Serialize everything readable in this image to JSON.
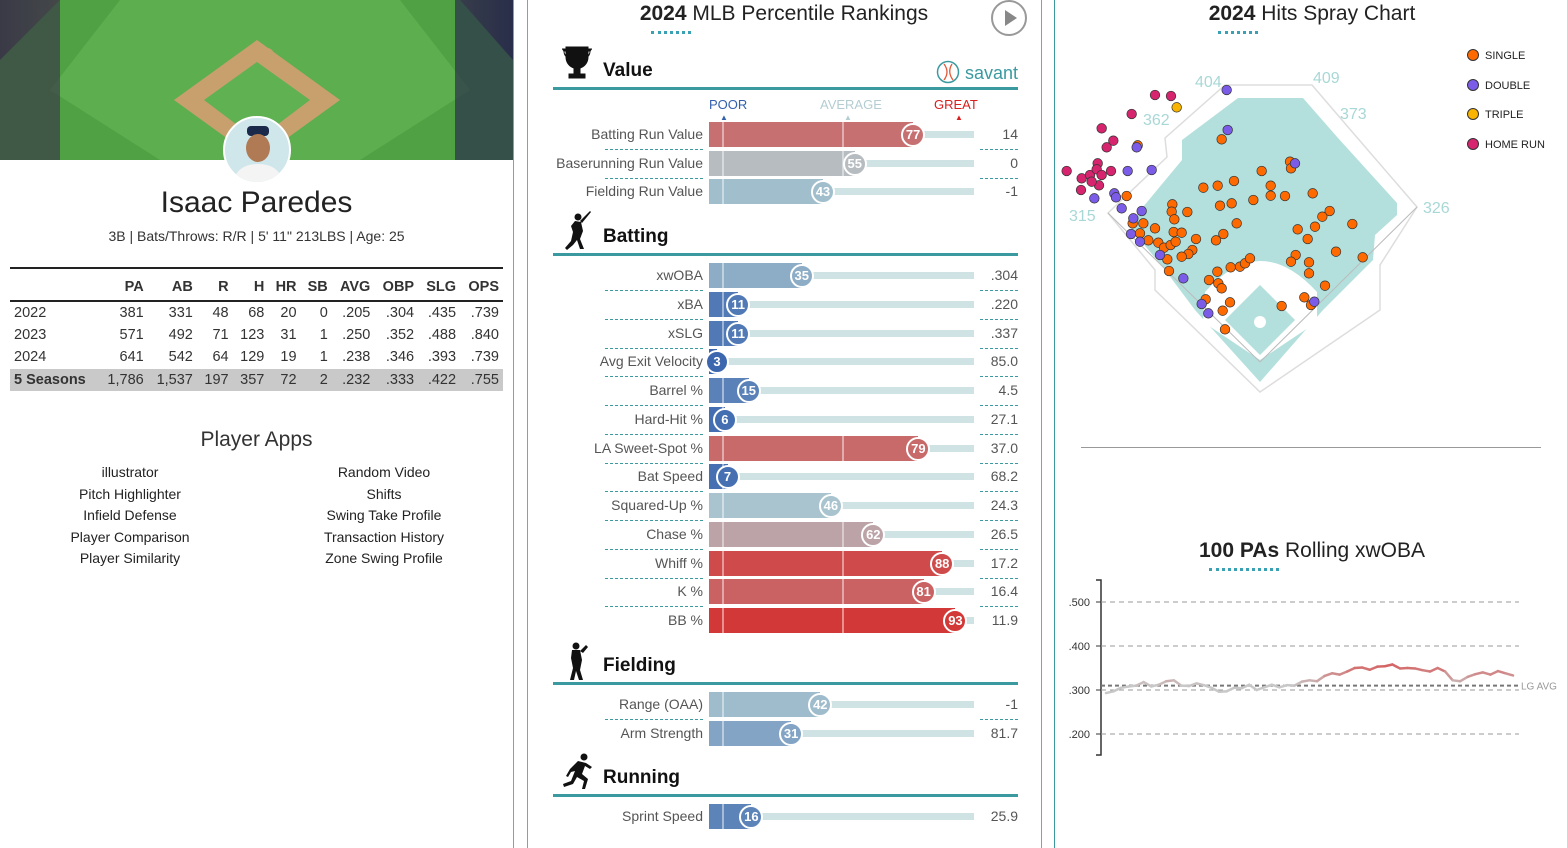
{
  "player": {
    "name": "Isaac Paredes",
    "bio": "3B | Bats/Throws: R/R | 5' 11\" 213LBS | Age: 25"
  },
  "stats": {
    "headers": [
      "",
      "PA",
      "AB",
      "R",
      "H",
      "HR",
      "SB",
      "AVG",
      "OBP",
      "SLG",
      "OPS"
    ],
    "rows": [
      [
        "2022",
        "381",
        "331",
        "48",
        "68",
        "20",
        "0",
        ".205",
        ".304",
        ".435",
        ".739"
      ],
      [
        "2023",
        "571",
        "492",
        "71",
        "123",
        "31",
        "1",
        ".250",
        ".352",
        ".488",
        ".840"
      ],
      [
        "2024",
        "641",
        "542",
        "64",
        "129",
        "19",
        "1",
        ".238",
        ".346",
        ".393",
        ".739"
      ],
      [
        "5 Seasons",
        "1,786",
        "1,537",
        "197",
        "357",
        "72",
        "2",
        ".232",
        ".333",
        ".422",
        ".755"
      ]
    ]
  },
  "apps": {
    "title": "Player Apps",
    "left": [
      "illustrator",
      "Pitch Highlighter",
      "Infield Defense",
      "Player Comparison",
      "Player Similarity"
    ],
    "right": [
      "Random Video",
      "Shifts",
      "Swing Take Profile",
      "Transaction History",
      "Zone Swing Profile"
    ]
  },
  "percentiles": {
    "title_bold": "2024",
    "title_rest": " MLB Percentile Rankings",
    "brand": "savant",
    "scale": {
      "poor": "POOR",
      "average": "AVERAGE",
      "great": "GREAT"
    },
    "colors": {
      "poor": "#3461ad",
      "average": "#b3cdd2",
      "great": "#d8201f",
      "accent": "#3a9aa0"
    },
    "sections": [
      {
        "title": "Value",
        "icon": "trophy-icon",
        "rows": [
          {
            "label": "Batting Run Value",
            "pct": 77,
            "value": "14"
          },
          {
            "label": "Baserunning Run Value",
            "pct": 55,
            "value": "0"
          },
          {
            "label": "Fielding Run Value",
            "pct": 43,
            "value": "-1"
          }
        ]
      },
      {
        "title": "Batting",
        "icon": "batter-icon",
        "rows": [
          {
            "label": "xwOBA",
            "pct": 35,
            "value": ".304"
          },
          {
            "label": "xBA",
            "pct": 11,
            "value": ".220"
          },
          {
            "label": "xSLG",
            "pct": 11,
            "value": ".337"
          },
          {
            "label": "Avg Exit Velocity",
            "pct": 3,
            "value": "85.0"
          },
          {
            "label": "Barrel %",
            "pct": 15,
            "value": "4.5"
          },
          {
            "label": "Hard-Hit %",
            "pct": 6,
            "value": "27.1"
          },
          {
            "label": "LA Sweet-Spot %",
            "pct": 79,
            "value": "37.0"
          },
          {
            "label": "Bat Speed",
            "pct": 7,
            "value": "68.2"
          },
          {
            "label": "Squared-Up %",
            "pct": 46,
            "value": "24.3"
          },
          {
            "label": "Chase %",
            "pct": 62,
            "value": "26.5"
          },
          {
            "label": "Whiff %",
            "pct": 88,
            "value": "17.2"
          },
          {
            "label": "K %",
            "pct": 81,
            "value": "16.4"
          },
          {
            "label": "BB %",
            "pct": 93,
            "value": "11.9"
          }
        ]
      },
      {
        "title": "Fielding",
        "icon": "fielder-icon",
        "rows": [
          {
            "label": "Range (OAA)",
            "pct": 42,
            "value": "-1"
          },
          {
            "label": "Arm Strength",
            "pct": 31,
            "value": "81.7"
          }
        ]
      },
      {
        "title": "Running",
        "icon": "runner-icon",
        "rows": [
          {
            "label": "Sprint Speed",
            "pct": 16,
            "value": "25.9"
          }
        ]
      }
    ]
  },
  "spray": {
    "title_bold": "2024",
    "title_rest": " Hits Spray Chart",
    "distances": [
      "404",
      "409",
      "362",
      "373",
      "315",
      "326"
    ],
    "legend": [
      {
        "label": "SINGLE",
        "color": "#ff6a00"
      },
      {
        "label": "DOUBLE",
        "color": "#7b5ce8"
      },
      {
        "label": "TRIPLE",
        "color": "#f8b400"
      },
      {
        "label": "HOME RUN",
        "color": "#d6246e"
      }
    ]
  },
  "chart_data": {
    "type": "line",
    "title_bold": "100 PAs",
    "title_rest": " Rolling xwOBA",
    "ylim": [
      0.15,
      0.55
    ],
    "yticks": [
      ".500",
      ".400",
      ".300",
      ".200"
    ],
    "ytick_values": [
      0.5,
      0.4,
      0.3,
      0.2
    ],
    "league_avg": 0.31,
    "league_avg_label": "LG AVG",
    "series": [
      {
        "name": "xwOBA",
        "values": [
          0.293,
          0.297,
          0.305,
          0.308,
          0.31,
          0.318,
          0.308,
          0.312,
          0.32,
          0.322,
          0.31,
          0.309,
          0.315,
          0.311,
          0.305,
          0.296,
          0.297,
          0.305,
          0.304,
          0.312,
          0.3,
          0.306,
          0.312,
          0.306,
          0.311,
          0.31,
          0.319,
          0.322,
          0.32,
          0.332,
          0.338,
          0.335,
          0.342,
          0.35,
          0.351,
          0.346,
          0.353,
          0.354,
          0.358,
          0.349,
          0.35,
          0.349,
          0.345,
          0.342,
          0.35,
          0.342,
          0.322,
          0.32,
          0.33,
          0.336,
          0.34,
          0.335,
          0.343,
          0.338,
          0.333
        ]
      }
    ]
  }
}
